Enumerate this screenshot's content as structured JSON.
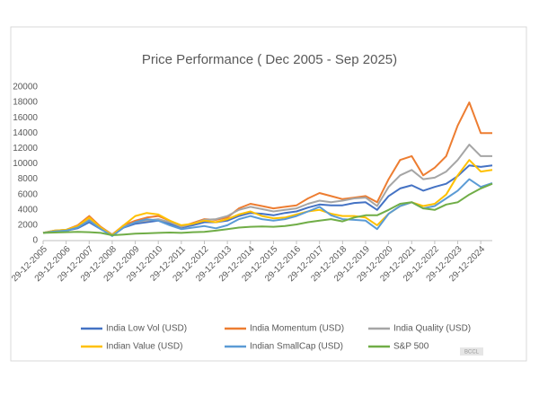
{
  "chart_data": {
    "type": "line",
    "title": "Price Performance ( Dec 2005 - Sep 2025)",
    "categories": [
      "29-12-2005",
      null,
      "29-12-2006",
      null,
      "29-12-2007",
      null,
      "29-12-2008",
      null,
      "29-12-2009",
      null,
      "29-12-2010",
      null,
      "29-12-2011",
      null,
      "29-12-2012",
      null,
      "29-12-2013",
      null,
      "29-12-2014",
      null,
      "29-12-2015",
      null,
      "29-12-2016",
      null,
      "29-12-2017",
      null,
      "29-12-2018",
      null,
      "29-12-2019",
      null,
      "29-12-2020",
      null,
      "29-12-2021",
      null,
      "29-12-2022",
      null,
      "29-12-2023",
      null,
      "29-12-2024",
      null
    ],
    "series": [
      {
        "name": "India Low Vol (USD)",
        "color": "#4472c4",
        "values": [
          1000,
          1200,
          1300,
          1600,
          2400,
          1500,
          800,
          1700,
          2200,
          2400,
          2600,
          2200,
          1700,
          2000,
          2400,
          2400,
          2600,
          3200,
          3600,
          3500,
          3300,
          3600,
          3800,
          4300,
          4700,
          4600,
          4600,
          4900,
          5000,
          4000,
          5800,
          6800,
          7200,
          6500,
          7000,
          7400,
          8400,
          9800,
          9600,
          9800
        ]
      },
      {
        "name": "India Momentum (USD)",
        "color": "#ed7d31",
        "values": [
          1000,
          1300,
          1400,
          2000,
          3200,
          1800,
          800,
          2000,
          2600,
          3000,
          3200,
          2600,
          1800,
          2300,
          2800,
          2700,
          3000,
          4200,
          4800,
          4500,
          4200,
          4400,
          4600,
          5500,
          6200,
          5800,
          5400,
          5600,
          5800,
          5000,
          8000,
          10500,
          11000,
          8500,
          9500,
          11000,
          15000,
          18000,
          14000,
          14000
        ]
      },
      {
        "name": "India Quality (USD)",
        "color": "#a5a5a5",
        "values": [
          1000,
          1300,
          1400,
          1800,
          2800,
          1700,
          800,
          1800,
          2400,
          2600,
          2800,
          2400,
          1800,
          2200,
          2700,
          2800,
          3200,
          4000,
          4400,
          4100,
          3800,
          4000,
          4200,
          4800,
          5200,
          5000,
          5200,
          5500,
          5600,
          4500,
          7000,
          8500,
          9200,
          8000,
          8200,
          9000,
          10500,
          12500,
          11000,
          11000
        ]
      },
      {
        "name": "Indian Value (USD)",
        "color": "#ffc000",
        "values": [
          1000,
          1300,
          1400,
          1900,
          3000,
          1700,
          700,
          2000,
          3200,
          3600,
          3400,
          2600,
          2000,
          2200,
          2600,
          2400,
          2800,
          3400,
          3800,
          3200,
          2900,
          3000,
          3400,
          3800,
          4000,
          3500,
          3200,
          3200,
          3000,
          2000,
          3500,
          4500,
          5000,
          4500,
          4800,
          6000,
          8500,
          10500,
          9000,
          9200
        ]
      },
      {
        "name": "Indian SmallCap (USD)",
        "color": "#5b9bd5",
        "values": [
          1000,
          1200,
          1300,
          1700,
          2600,
          1500,
          600,
          1700,
          2400,
          2800,
          2600,
          2000,
          1500,
          1700,
          1900,
          1600,
          2000,
          2800,
          3200,
          2800,
          2600,
          2800,
          3200,
          3800,
          4400,
          3300,
          2800,
          2700,
          2600,
          1500,
          3500,
          4500,
          5000,
          4200,
          4500,
          5500,
          6500,
          8000,
          7000,
          7500
        ]
      },
      {
        "name": "S&P 500",
        "color": "#70ad47",
        "values": [
          1000,
          1050,
          1100,
          1150,
          1100,
          1000,
          700,
          800,
          900,
          950,
          1000,
          1050,
          1000,
          1100,
          1150,
          1300,
          1500,
          1700,
          1800,
          1850,
          1800,
          1900,
          2100,
          2400,
          2600,
          2800,
          2500,
          3000,
          3300,
          3300,
          4000,
          4800,
          5000,
          4200,
          4000,
          4700,
          5000,
          6000,
          6800,
          7400
        ]
      }
    ],
    "ylim": [
      0,
      20000
    ],
    "yticks": [
      0,
      2000,
      4000,
      6000,
      8000,
      10000,
      12000,
      14000,
      16000,
      18000,
      20000
    ],
    "grid": false,
    "legend": "bottom",
    "watermark": "BCCL"
  }
}
